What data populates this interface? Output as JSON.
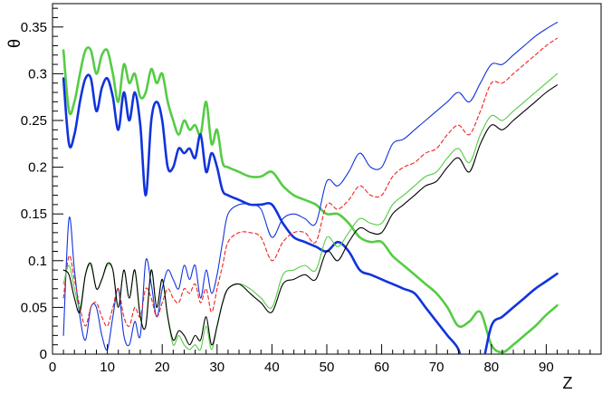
{
  "chart_data": {
    "type": "line",
    "xlabel": "Z",
    "ylabel": "θ",
    "xlim": [
      0,
      100
    ],
    "ylim": [
      0,
      0.375
    ],
    "x_ticks": [
      0,
      10,
      20,
      30,
      40,
      50,
      60,
      70,
      80,
      90
    ],
    "y_ticks": [
      0,
      0.05,
      0.1,
      0.15,
      0.2,
      0.25,
      0.3,
      0.35
    ],
    "x_tick_labels": [
      "0",
      "10",
      "20",
      "30",
      "40",
      "50",
      "60",
      "70",
      "80",
      "90"
    ],
    "y_tick_labels": [
      "0",
      "0.05",
      "0.1",
      "0.15",
      "0.2",
      "0.25",
      "0.3",
      "0.35"
    ],
    "grid": false,
    "series": [
      {
        "color": "#55cc44",
        "width": 2.6,
        "dash": "",
        "x": [
          2,
          3,
          4,
          5,
          6,
          7,
          8,
          9,
          10,
          11,
          12,
          13,
          14,
          15,
          16,
          17,
          18,
          19,
          20,
          21,
          22,
          23,
          24,
          25,
          26,
          27,
          28,
          29,
          30,
          31,
          32,
          34,
          36,
          38,
          40,
          42,
          44,
          46,
          48,
          50,
          52,
          54,
          56,
          58,
          60,
          62,
          64,
          66,
          68,
          70,
          72,
          74,
          76,
          78,
          80,
          82,
          84,
          86,
          88,
          90,
          92
        ],
        "y": [
          0.325,
          0.26,
          0.27,
          0.3,
          0.325,
          0.325,
          0.3,
          0.32,
          0.325,
          0.3,
          0.27,
          0.31,
          0.29,
          0.3,
          0.275,
          0.28,
          0.305,
          0.29,
          0.3,
          0.27,
          0.25,
          0.235,
          0.25,
          0.24,
          0.245,
          0.235,
          0.27,
          0.225,
          0.24,
          0.205,
          0.2,
          0.195,
          0.19,
          0.19,
          0.195,
          0.18,
          0.17,
          0.165,
          0.16,
          0.15,
          0.15,
          0.14,
          0.125,
          0.12,
          0.12,
          0.105,
          0.095,
          0.085,
          0.075,
          0.065,
          0.05,
          0.03,
          0.035,
          0.045,
          0.01,
          0.002,
          0.01,
          0.02,
          0.03,
          0.042,
          0.052
        ]
      },
      {
        "color": "#1133dd",
        "width": 2.6,
        "dash": "",
        "x": [
          2,
          3,
          4,
          5,
          6,
          7,
          8,
          9,
          10,
          11,
          12,
          13,
          14,
          15,
          16,
          17,
          18,
          19,
          20,
          21,
          22,
          23,
          24,
          25,
          26,
          27,
          28,
          29,
          30,
          31,
          32,
          34,
          36,
          38,
          40,
          42,
          44,
          46,
          48,
          50,
          52,
          54,
          56,
          58,
          60,
          62,
          64,
          66,
          68,
          70,
          72,
          74,
          75,
          76,
          78,
          80,
          82,
          84,
          86,
          88,
          90,
          92
        ],
        "y": [
          0.295,
          0.225,
          0.235,
          0.27,
          0.295,
          0.295,
          0.26,
          0.285,
          0.295,
          0.275,
          0.24,
          0.28,
          0.25,
          0.28,
          0.245,
          0.17,
          0.25,
          0.27,
          0.25,
          0.2,
          0.2,
          0.22,
          0.215,
          0.22,
          0.21,
          0.235,
          0.195,
          0.215,
          0.2,
          0.175,
          0.17,
          0.165,
          0.16,
          0.16,
          0.16,
          0.14,
          0.125,
          0.12,
          0.115,
          0.11,
          0.12,
          0.11,
          0.09,
          0.085,
          0.08,
          0.075,
          0.07,
          0.065,
          0.05,
          0.035,
          0.02,
          0.005,
          -0.02,
          -0.03,
          -0.02,
          0.03,
          0.04,
          0.05,
          0.06,
          0.07,
          0.078,
          0.086
        ]
      },
      {
        "color": "#1133dd",
        "width": 1.1,
        "dash": "",
        "x": [
          2,
          3,
          4,
          5,
          6,
          7,
          8,
          9,
          10,
          11,
          12,
          13,
          14,
          15,
          16,
          17,
          18,
          19,
          20,
          21,
          22,
          23,
          24,
          25,
          26,
          27,
          28,
          29,
          30,
          31,
          32,
          34,
          36,
          38,
          40,
          42,
          44,
          46,
          48,
          50,
          52,
          54,
          56,
          58,
          60,
          62,
          64,
          66,
          68,
          70,
          72,
          74,
          76,
          78,
          80,
          82,
          84,
          86,
          88,
          90,
          92
        ],
        "y": [
          0.02,
          0.145,
          0.09,
          0.04,
          0.015,
          0.05,
          0.05,
          0.02,
          0.005,
          0.04,
          0.07,
          0.02,
          0.01,
          0.035,
          0.02,
          0.1,
          0.075,
          0.04,
          0.07,
          0.09,
          0.08,
          0.07,
          0.095,
          0.08,
          0.095,
          0.06,
          0.09,
          0.065,
          0.085,
          0.12,
          0.15,
          0.16,
          0.16,
          0.155,
          0.125,
          0.145,
          0.15,
          0.145,
          0.14,
          0.185,
          0.18,
          0.195,
          0.215,
          0.2,
          0.2,
          0.225,
          0.23,
          0.24,
          0.25,
          0.26,
          0.27,
          0.28,
          0.27,
          0.29,
          0.31,
          0.31,
          0.32,
          0.33,
          0.34,
          0.348,
          0.355
        ]
      },
      {
        "color": "#ee2222",
        "width": 1.1,
        "dash": "4,3",
        "x": [
          2,
          3,
          4,
          5,
          6,
          7,
          8,
          9,
          10,
          11,
          12,
          13,
          14,
          15,
          16,
          17,
          18,
          19,
          20,
          21,
          22,
          23,
          24,
          25,
          26,
          27,
          28,
          29,
          30,
          31,
          32,
          34,
          36,
          38,
          40,
          42,
          44,
          46,
          48,
          50,
          52,
          54,
          56,
          58,
          60,
          62,
          64,
          66,
          68,
          70,
          72,
          74,
          76,
          78,
          80,
          82,
          84,
          86,
          88,
          90,
          92
        ],
        "y": [
          0.06,
          0.105,
          0.08,
          0.05,
          0.03,
          0.05,
          0.055,
          0.04,
          0.03,
          0.05,
          0.07,
          0.04,
          0.03,
          0.05,
          0.04,
          0.07,
          0.06,
          0.04,
          0.055,
          0.07,
          0.06,
          0.055,
          0.07,
          0.065,
          0.075,
          0.055,
          0.07,
          0.045,
          0.07,
          0.095,
          0.12,
          0.13,
          0.13,
          0.125,
          0.1,
          0.12,
          0.13,
          0.13,
          0.12,
          0.16,
          0.155,
          0.165,
          0.18,
          0.17,
          0.17,
          0.19,
          0.2,
          0.205,
          0.215,
          0.22,
          0.235,
          0.245,
          0.235,
          0.26,
          0.29,
          0.29,
          0.3,
          0.31,
          0.32,
          0.33,
          0.338
        ]
      },
      {
        "color": "#55cc44",
        "width": 1.1,
        "dash": "",
        "x": [
          2,
          3,
          4,
          5,
          6,
          7,
          8,
          9,
          10,
          11,
          12,
          13,
          14,
          15,
          16,
          17,
          18,
          19,
          20,
          21,
          22,
          23,
          24,
          25,
          26,
          27,
          28,
          29,
          30,
          31,
          32,
          34,
          36,
          38,
          40,
          42,
          44,
          46,
          48,
          50,
          52,
          54,
          56,
          58,
          60,
          62,
          64,
          66,
          68,
          70,
          72,
          74,
          76,
          78,
          80,
          82,
          84,
          86,
          88,
          90,
          92
        ],
        "y": [
          0.075,
          0.095,
          0.07,
          0.05,
          0.085,
          0.095,
          0.07,
          0.08,
          0.095,
          0.09,
          0.05,
          0.09,
          0.06,
          0.09,
          0.04,
          0.03,
          0.09,
          0.05,
          0.08,
          0.04,
          0.01,
          0.02,
          0.01,
          0.005,
          0.01,
          0.005,
          0.03,
          0.005,
          0.03,
          0.055,
          0.07,
          0.075,
          0.07,
          0.06,
          0.05,
          0.085,
          0.09,
          0.095,
          0.09,
          0.125,
          0.115,
          0.13,
          0.145,
          0.14,
          0.14,
          0.16,
          0.17,
          0.18,
          0.19,
          0.195,
          0.21,
          0.22,
          0.205,
          0.235,
          0.255,
          0.25,
          0.26,
          0.27,
          0.28,
          0.29,
          0.3
        ]
      },
      {
        "color": "#000000",
        "width": 1.1,
        "dash": "",
        "x": [
          2,
          3,
          4,
          5,
          6,
          7,
          8,
          9,
          10,
          11,
          12,
          13,
          14,
          15,
          16,
          17,
          18,
          19,
          20,
          21,
          22,
          23,
          24,
          25,
          26,
          27,
          28,
          29,
          30,
          31,
          32,
          34,
          36,
          38,
          40,
          42,
          44,
          46,
          48,
          50,
          52,
          54,
          56,
          58,
          60,
          62,
          64,
          66,
          68,
          70,
          72,
          74,
          76,
          78,
          80,
          82,
          84,
          86,
          88,
          90,
          92
        ],
        "y": [
          0.09,
          0.085,
          0.06,
          0.045,
          0.085,
          0.097,
          0.07,
          0.08,
          0.097,
          0.09,
          0.05,
          0.09,
          0.06,
          0.09,
          0.04,
          0.03,
          0.09,
          0.05,
          0.08,
          0.04,
          0.015,
          0.025,
          0.02,
          0.01,
          0.02,
          0.015,
          0.04,
          0.01,
          0.03,
          0.055,
          0.07,
          0.075,
          0.065,
          0.055,
          0.045,
          0.075,
          0.08,
          0.085,
          0.08,
          0.11,
          0.1,
          0.12,
          0.135,
          0.13,
          0.13,
          0.15,
          0.16,
          0.17,
          0.18,
          0.185,
          0.2,
          0.21,
          0.195,
          0.225,
          0.245,
          0.24,
          0.25,
          0.26,
          0.27,
          0.28,
          0.288
        ]
      }
    ]
  }
}
